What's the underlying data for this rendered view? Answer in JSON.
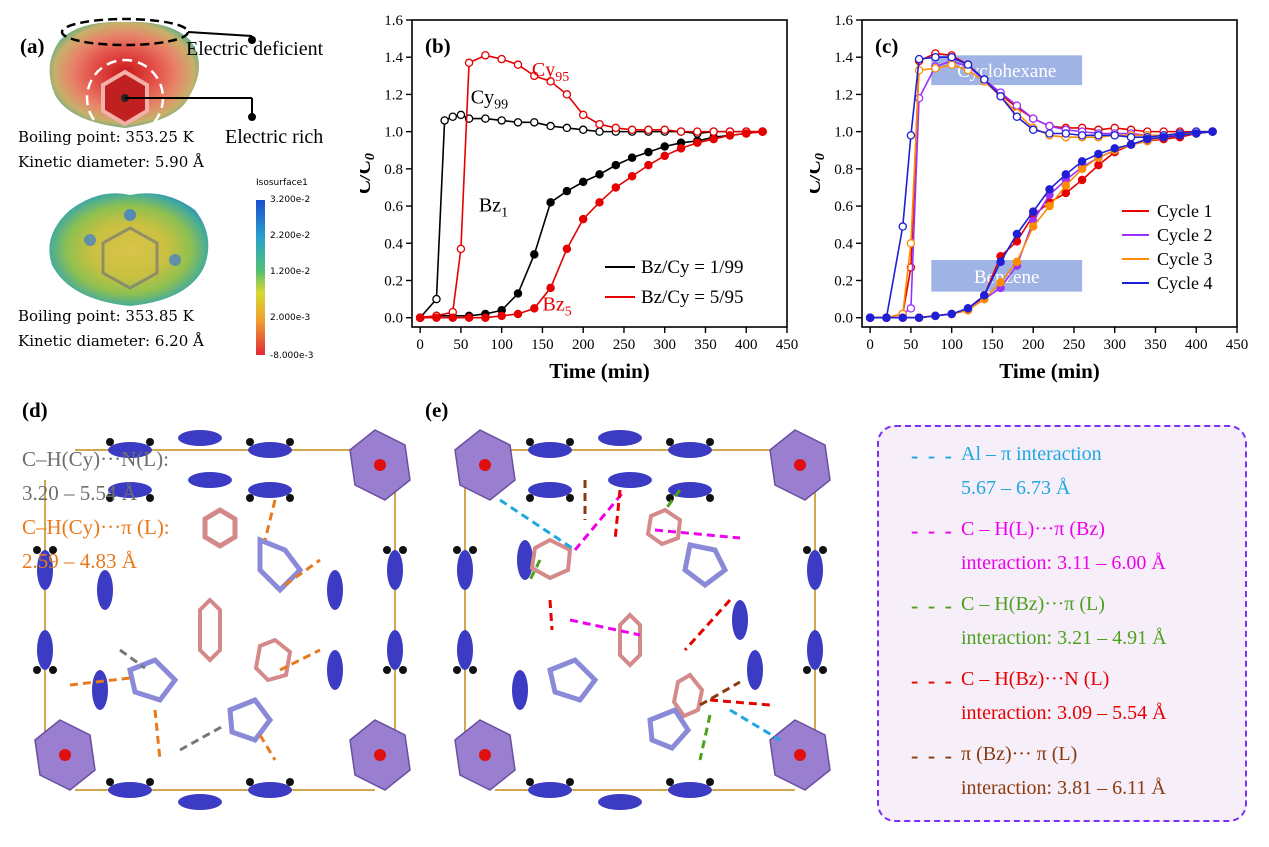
{
  "panels": {
    "a": {
      "label": "(a)",
      "electric_deficient": "Electric deficient",
      "electric_rich": "Electric rich",
      "bz_boiling": "Boiling point: 353.25 K",
      "bz_kinetic": "Kinetic diameter: 5.90 Å",
      "cy_boiling": "Boiling point: 353.85 K",
      "cy_kinetic": "Kinetic diameter: 6.20 Å",
      "colorbar": {
        "title": "Isosurface1",
        "ticks": [
          "3.200e-2",
          "2.200e-2",
          "1.200e-2",
          "2.000e-3",
          "-8.000e-3"
        ]
      }
    },
    "b": {
      "label": "(b)"
    },
    "c": {
      "label": "(c)"
    },
    "d": {
      "label": "(d)",
      "line1": "C–H(Cy)···N(L):",
      "line2": "3.20 – 5.54 Å",
      "line3": "C–H(Cy)···π (L):",
      "line4": "2.59 – 4.83 Å",
      "color_gray": "#6e6e6e",
      "color_orange": "#e87a1e"
    },
    "e": {
      "label": "(e)",
      "legend": [
        {
          "color": "#1ea7e1",
          "line1": "Al – π  interaction",
          "line2": "5.67 – 6.73 Å"
        },
        {
          "color": "#ee00ee",
          "line1": "C – H(L)···π (Bz)",
          "line2": "interaction: 3.11 – 6.00 Å"
        },
        {
          "color": "#4da11e",
          "line1": "C – H(Bz)···π (L)",
          "line2": "interaction: 3.21 – 4.91 Å"
        },
        {
          "color": "#e60000",
          "line1": "C – H(Bz)···N (L)",
          "line2": "interaction: 3.09 – 5.54 Å"
        },
        {
          "color": "#8b3a0f",
          "line1": "π (Bz)··· π (L)",
          "line2": "interaction: 3.81 – 6.11 Å"
        }
      ]
    }
  },
  "chart_data": [
    {
      "type": "line",
      "panel": "b",
      "xlabel": "Time (min)",
      "ylabel": "C/C0",
      "xlim": [
        -10,
        450
      ],
      "ylim": [
        -0.05,
        1.6
      ],
      "xticks": [
        "0",
        "50",
        "100",
        "150",
        "200",
        "250",
        "300",
        "350",
        "400",
        "450"
      ],
      "yticks": [
        "0.0",
        "0.2",
        "0.4",
        "0.6",
        "0.8",
        "1.0",
        "1.2",
        "1.4",
        "1.6"
      ],
      "annotations": [
        {
          "text": "Cy",
          "sub": "95",
          "color": "#e60000",
          "x": 160,
          "y": 1.3
        },
        {
          "text": "Cy",
          "sub": "99",
          "color": "#000000",
          "x": 85,
          "y": 1.15
        },
        {
          "text": "Bz",
          "sub": "1",
          "color": "#000000",
          "x": 90,
          "y": 0.57
        },
        {
          "text": "Bz",
          "sub": "5",
          "color": "#e60000",
          "x": 168,
          "y": 0.04
        }
      ],
      "legend_position": "lower-right",
      "series": [
        {
          "name": "Bz/Cy = 1/99",
          "color": "#000000",
          "marker": "open",
          "group": "Cy99",
          "show_legend": false,
          "x": [
            0,
            20,
            30,
            40,
            50,
            60,
            80,
            100,
            120,
            140,
            160,
            180,
            200,
            220,
            240,
            260,
            280,
            300,
            320,
            340,
            360,
            380,
            400,
            420
          ],
          "y": [
            0.0,
            0.1,
            1.06,
            1.08,
            1.09,
            1.07,
            1.07,
            1.06,
            1.05,
            1.05,
            1.03,
            1.02,
            1.01,
            1.0,
            1.0,
            1.0,
            1.0,
            1.0,
            1.0,
            0.99,
            1.0,
            1.0,
            1.0,
            1.0
          ]
        },
        {
          "name": "Bz/Cy = 1/99",
          "color": "#000000",
          "marker": "filled",
          "group": "Bz1",
          "show_legend": true,
          "x": [
            0,
            20,
            40,
            60,
            80,
            100,
            120,
            140,
            160,
            180,
            200,
            220,
            240,
            260,
            280,
            300,
            320,
            340,
            360,
            380,
            400,
            420
          ],
          "y": [
            0.0,
            0.01,
            0.01,
            0.01,
            0.02,
            0.04,
            0.13,
            0.34,
            0.62,
            0.68,
            0.73,
            0.77,
            0.82,
            0.86,
            0.89,
            0.92,
            0.94,
            0.95,
            0.97,
            0.98,
            0.99,
            1.0
          ]
        },
        {
          "name": "Bz/Cy = 5/95",
          "color": "#e60000",
          "marker": "open",
          "group": "Cy95",
          "show_legend": false,
          "x": [
            0,
            20,
            40,
            50,
            60,
            80,
            100,
            120,
            140,
            160,
            180,
            200,
            220,
            240,
            260,
            280,
            300,
            320,
            340,
            360,
            380,
            400,
            420
          ],
          "y": [
            0.0,
            0.01,
            0.03,
            0.37,
            1.37,
            1.41,
            1.39,
            1.36,
            1.3,
            1.27,
            1.2,
            1.09,
            1.04,
            1.02,
            1.01,
            1.01,
            1.01,
            1.0,
            1.0,
            1.0,
            1.0,
            1.0,
            1.0
          ]
        },
        {
          "name": "Bz/Cy = 5/95",
          "color": "#e60000",
          "marker": "filled",
          "group": "Bz5",
          "show_legend": true,
          "x": [
            0,
            20,
            40,
            60,
            80,
            100,
            120,
            140,
            160,
            180,
            200,
            220,
            240,
            260,
            280,
            300,
            320,
            340,
            360,
            380,
            400,
            420
          ],
          "y": [
            0.0,
            0.0,
            0.0,
            0.0,
            0.0,
            0.01,
            0.02,
            0.05,
            0.16,
            0.37,
            0.53,
            0.62,
            0.7,
            0.76,
            0.82,
            0.87,
            0.91,
            0.94,
            0.96,
            0.98,
            0.99,
            1.0
          ]
        }
      ]
    },
    {
      "type": "line",
      "panel": "c",
      "xlabel": "Time (min)",
      "ylabel": "C/C0",
      "xlim": [
        -10,
        450
      ],
      "ylim": [
        -0.05,
        1.6
      ],
      "xticks": [
        "0",
        "50",
        "100",
        "150",
        "200",
        "250",
        "300",
        "350",
        "400",
        "450"
      ],
      "yticks": [
        "0.0",
        "0.2",
        "0.4",
        "0.6",
        "0.8",
        "1.0",
        "1.2",
        "1.4",
        "1.6"
      ],
      "boxes": [
        {
          "text": "Cyclohexane",
          "x0": 75,
          "x1": 260,
          "y0": 1.25,
          "y1": 1.41
        },
        {
          "text": "Benzene",
          "x0": 75,
          "x1": 260,
          "y0": 0.14,
          "y1": 0.31
        }
      ],
      "legend_position": "right",
      "series": [
        {
          "name": "Cycle 1",
          "color": "#e60000",
          "cy_x": [
            0,
            20,
            40,
            50,
            60,
            80,
            100,
            120,
            140,
            160,
            180,
            200,
            220,
            240,
            260,
            280,
            300,
            320,
            340,
            360,
            380,
            400,
            420
          ],
          "cy_y": [
            0.0,
            0.0,
            0.02,
            0.27,
            1.38,
            1.42,
            1.41,
            1.36,
            1.28,
            1.2,
            1.13,
            1.07,
            1.03,
            1.02,
            1.02,
            1.01,
            1.02,
            1.01,
            1.0,
            1.0,
            1.0,
            1.0,
            1.0
          ],
          "bz_x": [
            0,
            20,
            40,
            60,
            80,
            100,
            120,
            140,
            160,
            180,
            200,
            220,
            240,
            260,
            280,
            300,
            320,
            340,
            360,
            380,
            400,
            420
          ],
          "bz_y": [
            0.0,
            0.0,
            0.0,
            0.0,
            0.01,
            0.02,
            0.04,
            0.12,
            0.33,
            0.41,
            0.55,
            0.62,
            0.67,
            0.74,
            0.82,
            0.89,
            0.93,
            0.95,
            0.96,
            0.97,
            0.99,
            1.0
          ]
        },
        {
          "name": "Cycle 2",
          "color": "#9b30ff",
          "cy_x": [
            0,
            20,
            40,
            50,
            60,
            80,
            100,
            120,
            140,
            160,
            180,
            200,
            220,
            240,
            260,
            280,
            300,
            320,
            340,
            360,
            380,
            400,
            420
          ],
          "cy_y": [
            0.0,
            0.0,
            0.02,
            0.05,
            1.18,
            1.35,
            1.38,
            1.35,
            1.28,
            1.21,
            1.14,
            1.07,
            1.03,
            1.01,
            1.0,
            0.99,
            0.99,
            0.99,
            0.98,
            0.98,
            0.99,
            0.99,
            1.0
          ],
          "bz_x": [
            0,
            20,
            40,
            60,
            80,
            100,
            120,
            140,
            160,
            180,
            200,
            220,
            240,
            260,
            280,
            300,
            320,
            340,
            360,
            380,
            400,
            420
          ],
          "bz_y": [
            0.0,
            0.0,
            0.0,
            0.0,
            0.01,
            0.02,
            0.05,
            0.1,
            0.16,
            0.28,
            0.52,
            0.66,
            0.74,
            0.81,
            0.86,
            0.9,
            0.93,
            0.95,
            0.97,
            0.98,
            0.99,
            1.0
          ]
        },
        {
          "name": "Cycle 3",
          "color": "#ff8c00",
          "cy_x": [
            0,
            20,
            40,
            50,
            60,
            80,
            100,
            120,
            140,
            160,
            180,
            200,
            220,
            240,
            260,
            280,
            300,
            320,
            340,
            360,
            380,
            400,
            420
          ],
          "cy_y": [
            0.0,
            0.0,
            0.02,
            0.4,
            1.33,
            1.34,
            1.36,
            1.33,
            1.27,
            1.19,
            1.1,
            1.02,
            0.98,
            0.97,
            0.97,
            0.97,
            0.98,
            0.98,
            0.98,
            0.98,
            0.99,
            0.99,
            1.0
          ],
          "bz_x": [
            0,
            20,
            40,
            60,
            80,
            100,
            120,
            140,
            160,
            180,
            200,
            220,
            240,
            260,
            280,
            300,
            320,
            340,
            360,
            380,
            400,
            420
          ],
          "bz_y": [
            0.0,
            0.0,
            0.0,
            0.0,
            0.01,
            0.02,
            0.04,
            0.1,
            0.19,
            0.3,
            0.49,
            0.6,
            0.71,
            0.8,
            0.86,
            0.9,
            0.93,
            0.95,
            0.97,
            0.98,
            0.99,
            1.0
          ]
        },
        {
          "name": "Cycle 4",
          "color": "#1f1fd6",
          "cy_x": [
            0,
            20,
            40,
            50,
            60,
            80,
            100,
            120,
            140,
            160,
            180,
            200,
            220,
            240,
            260,
            280,
            300,
            320,
            340,
            360,
            380,
            400,
            420
          ],
          "cy_y": [
            0.0,
            0.0,
            0.49,
            0.98,
            1.39,
            1.4,
            1.4,
            1.36,
            1.28,
            1.19,
            1.08,
            1.01,
            0.99,
            0.99,
            0.98,
            0.98,
            0.98,
            0.97,
            0.97,
            0.98,
            0.99,
            1.0,
            1.0
          ],
          "bz_x": [
            0,
            20,
            40,
            60,
            80,
            100,
            120,
            140,
            160,
            180,
            200,
            220,
            240,
            260,
            280,
            300,
            320,
            340,
            360,
            380,
            400,
            420
          ],
          "bz_y": [
            0.0,
            0.0,
            0.0,
            0.0,
            0.01,
            0.02,
            0.05,
            0.12,
            0.3,
            0.45,
            0.57,
            0.69,
            0.77,
            0.84,
            0.88,
            0.91,
            0.93,
            0.96,
            0.97,
            0.98,
            0.99,
            1.0
          ]
        }
      ]
    }
  ]
}
